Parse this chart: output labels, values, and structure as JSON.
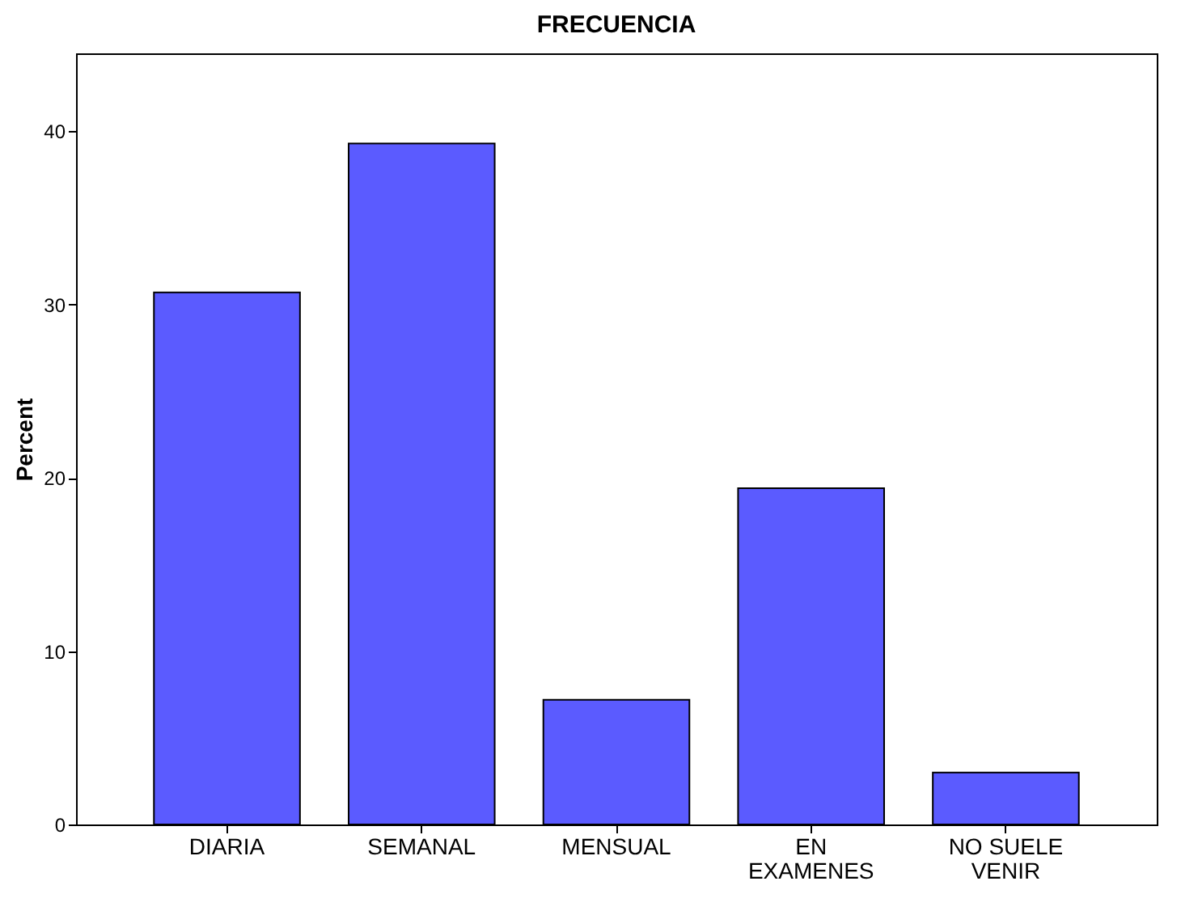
{
  "chart_data": {
    "type": "bar",
    "title": "FRECUENCIA",
    "ylabel": "Percent",
    "categories": [
      "DIARIA",
      "SEMANAL",
      "MENSUAL",
      "EN EXAMENES",
      "NO SUELE VENIR"
    ],
    "values": [
      30.7,
      39.3,
      7.2,
      19.4,
      3.0
    ],
    "color": "#5b5bff",
    "ylim": [
      0,
      44.5
    ],
    "yticks": [
      0,
      10,
      20,
      30,
      40
    ],
    "grid": false
  }
}
